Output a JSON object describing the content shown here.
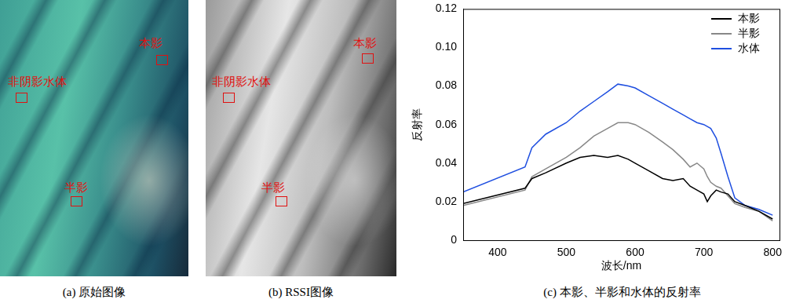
{
  "panels": [
    {
      "caption": "(a) 原始图像",
      "labels": [
        "本影",
        "非阴影水体",
        "半影"
      ]
    },
    {
      "caption": "(b) RSSI图像",
      "labels": [
        "本影",
        "非阴影水体",
        "半影"
      ]
    }
  ],
  "chart_data": {
    "type": "line",
    "caption": "(c) 本影、半影和水体的反射率",
    "x_label": "波长/nm",
    "y_label": "反射率",
    "x": [
      350,
      440,
      450,
      470,
      500,
      520,
      540,
      560,
      575,
      590,
      600,
      620,
      640,
      655,
      670,
      680,
      690,
      700,
      705,
      710,
      718,
      725,
      735,
      745,
      760,
      780,
      800
    ],
    "series": [
      {
        "name": "本影",
        "color": "#000000",
        "values": [
          0.019,
          0.027,
          0.032,
          0.035,
          0.04,
          0.043,
          0.044,
          0.043,
          0.044,
          0.042,
          0.04,
          0.036,
          0.032,
          0.031,
          0.032,
          0.028,
          0.026,
          0.024,
          0.02,
          0.023,
          0.026,
          0.025,
          0.024,
          0.02,
          0.018,
          0.015,
          0.011
        ]
      },
      {
        "name": "半影",
        "color": "#888888",
        "values": [
          0.018,
          0.026,
          0.033,
          0.037,
          0.043,
          0.048,
          0.054,
          0.058,
          0.061,
          0.061,
          0.06,
          0.056,
          0.051,
          0.047,
          0.042,
          0.038,
          0.04,
          0.037,
          0.033,
          0.03,
          0.028,
          0.027,
          0.023,
          0.019,
          0.017,
          0.015,
          0.01
        ]
      },
      {
        "name": "水体",
        "color": "#1f4fe0",
        "values": [
          0.025,
          0.038,
          0.048,
          0.055,
          0.061,
          0.067,
          0.072,
          0.077,
          0.081,
          0.08,
          0.079,
          0.075,
          0.071,
          0.068,
          0.065,
          0.063,
          0.061,
          0.06,
          0.059,
          0.058,
          0.053,
          0.045,
          0.033,
          0.022,
          0.018,
          0.016,
          0.013
        ]
      }
    ],
    "xlim": [
      350,
      810
    ],
    "xticks": [
      400,
      500,
      600,
      700,
      800
    ],
    "ylim": [
      0,
      0.12
    ],
    "yticks": [
      0,
      0.02,
      0.04,
      0.06,
      0.08,
      {
        "value": 0.1,
        "label": "0.10"
      },
      0.12
    ],
    "grid": false,
    "legend": "upper right"
  }
}
